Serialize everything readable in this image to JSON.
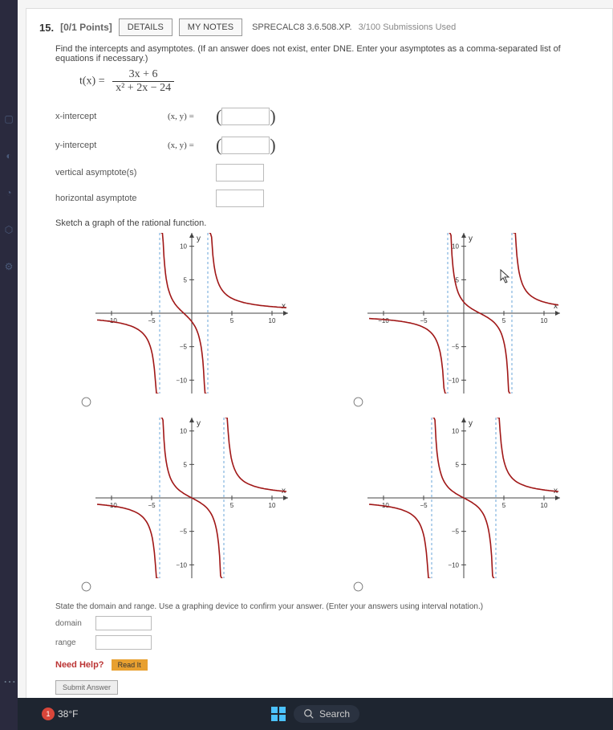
{
  "question": {
    "number": "15.",
    "points": "[0/1 Points]",
    "details_btn": "DETAILS",
    "notes_btn": "MY NOTES",
    "reference": "SPRECALC8 3.6.508.XP.",
    "submissions": "3/100 Submissions Used",
    "instruction": "Find the intercepts and asymptotes. (If an answer does not exist, enter DNE. Enter your asymptotes as a comma-separated list of equations if necessary.)",
    "formula_lhs": "t(x) =",
    "formula_num": "3x + 6",
    "formula_den": "x² + 2x − 24",
    "rows": {
      "xint": {
        "label": "x-intercept",
        "eq": "(x, y) ="
      },
      "yint": {
        "label": "y-intercept",
        "eq": "(x, y) ="
      },
      "vasym": {
        "label": "vertical asymptote(s)"
      },
      "hasym": {
        "label": "horizontal asymptote"
      }
    },
    "sketch_label": "Sketch a graph of the rational function.",
    "domain_range_instr": "State the domain and range. Use a graphing device to confirm your answer. (Enter your answers using interval notation.)",
    "domain_label": "domain",
    "range_label": "range",
    "need_help": "Need Help?",
    "readit": "Read It",
    "submit": "Submit Answer"
  },
  "graphs": {
    "axis_color": "#444444",
    "grid_color": "#dddddd",
    "curve_color": "#a01717",
    "asym_color": "#6aa5d8",
    "xlim": [
      -12,
      12
    ],
    "ylim": [
      -12,
      12
    ],
    "ticks": [
      -10,
      -5,
      5,
      10
    ],
    "xlabel": "x",
    "ylabel": "y",
    "options": [
      {
        "vasym": [
          -4,
          2
        ],
        "radio_checked": false
      },
      {
        "vasym": [
          -2,
          6
        ],
        "radio_checked": false
      },
      {
        "vasym": [
          -4,
          4
        ],
        "radio_checked": false
      },
      {
        "vasym": [
          -4,
          4
        ],
        "radio_checked": false
      }
    ]
  },
  "taskbar": {
    "badge": "1",
    "temp": "38°F",
    "search_placeholder": "Search"
  }
}
